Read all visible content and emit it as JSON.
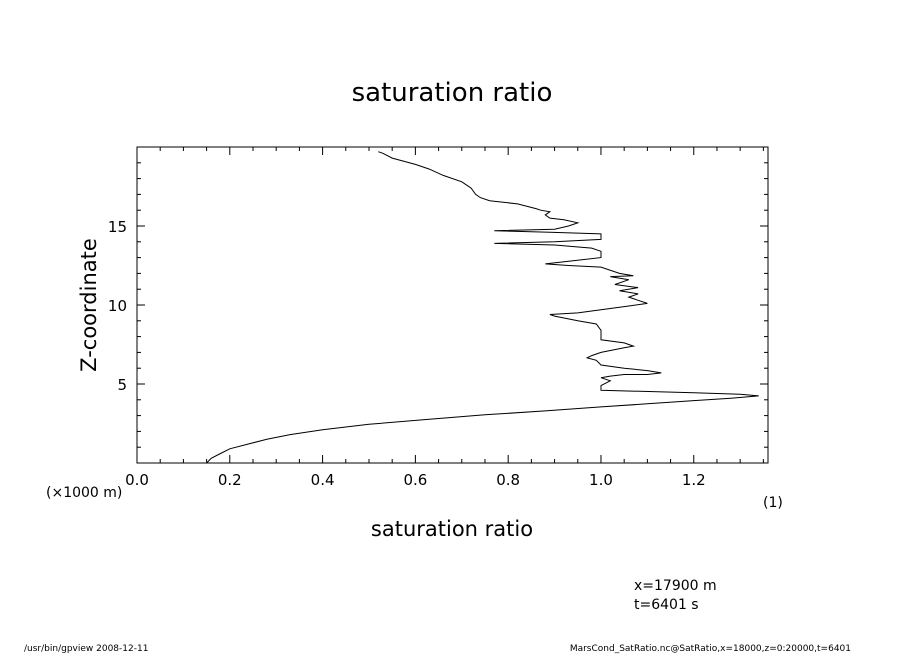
{
  "footer": {
    "left": "/usr/bin/gpview   2008-12-11",
    "right": "MarsCond_SatRatio.nc@SatRatio,x=18000,z=0:20000,t=6401"
  },
  "info": {
    "x_label": "x=17900  m",
    "t_label": "t=6401  s"
  },
  "chart_data": {
    "type": "line",
    "title": "saturation ratio",
    "xlabel": "saturation ratio",
    "ylabel": "Z-coordinate",
    "x_unit": "(1)",
    "y_unit": "(×1000 m)",
    "xlim": [
      0.0,
      1.36
    ],
    "ylim": [
      0,
      20
    ],
    "x_ticks": [
      "0.0",
      "0.2",
      "0.4",
      "0.6",
      "0.8",
      "1.0",
      "1.2"
    ],
    "y_ticks": [
      "5",
      "10",
      "15"
    ],
    "x_tick_values": [
      0.0,
      0.2,
      0.4,
      0.6,
      0.8,
      1.0,
      1.2
    ],
    "y_tick_values": [
      5,
      10,
      15
    ],
    "grid": false,
    "series": [
      {
        "points": [
          [
            0.15,
            0.0
          ],
          [
            0.16,
            0.3
          ],
          [
            0.18,
            0.6
          ],
          [
            0.2,
            0.9
          ],
          [
            0.24,
            1.2
          ],
          [
            0.28,
            1.5
          ],
          [
            0.33,
            1.8
          ],
          [
            0.4,
            2.1
          ],
          [
            0.5,
            2.45
          ],
          [
            0.62,
            2.75
          ],
          [
            0.75,
            3.05
          ],
          [
            0.88,
            3.3
          ],
          [
            1.0,
            3.55
          ],
          [
            1.1,
            3.75
          ],
          [
            1.2,
            3.95
          ],
          [
            1.28,
            4.1
          ],
          [
            1.34,
            4.25
          ],
          [
            1.3,
            4.35
          ],
          [
            1.2,
            4.45
          ],
          [
            1.0,
            4.6
          ],
          [
            1.0,
            4.9
          ],
          [
            1.02,
            5.2
          ],
          [
            1.0,
            5.4
          ],
          [
            1.02,
            5.5
          ],
          [
            1.05,
            5.6
          ],
          [
            1.1,
            5.6
          ],
          [
            1.13,
            5.7
          ],
          [
            1.1,
            5.85
          ],
          [
            1.05,
            6.0
          ],
          [
            1.0,
            6.2
          ],
          [
            0.99,
            6.5
          ],
          [
            0.97,
            6.65
          ],
          [
            0.98,
            6.8
          ],
          [
            1.0,
            7.0
          ],
          [
            1.05,
            7.3
          ],
          [
            1.07,
            7.4
          ],
          [
            1.05,
            7.6
          ],
          [
            1.0,
            7.8
          ],
          [
            1.0,
            8.4
          ],
          [
            0.99,
            8.8
          ],
          [
            0.95,
            9.0
          ],
          [
            0.9,
            9.3
          ],
          [
            0.89,
            9.4
          ],
          [
            0.95,
            9.5
          ],
          [
            1.0,
            9.7
          ],
          [
            1.05,
            9.9
          ],
          [
            1.1,
            10.1
          ],
          [
            1.08,
            10.3
          ],
          [
            1.06,
            10.5
          ],
          [
            1.08,
            10.7
          ],
          [
            1.04,
            10.9
          ],
          [
            1.08,
            11.1
          ],
          [
            1.03,
            11.3
          ],
          [
            1.06,
            11.6
          ],
          [
            1.02,
            11.8
          ],
          [
            1.07,
            11.85
          ],
          [
            1.04,
            12.0
          ],
          [
            1.0,
            12.4
          ],
          [
            0.93,
            12.5
          ],
          [
            0.88,
            12.6
          ],
          [
            0.94,
            12.8
          ],
          [
            1.0,
            13.0
          ],
          [
            1.0,
            13.4
          ],
          [
            0.98,
            13.6
          ],
          [
            0.9,
            13.8
          ],
          [
            0.77,
            13.9
          ],
          [
            0.9,
            14.0
          ],
          [
            1.0,
            14.15
          ],
          [
            1.0,
            14.5
          ],
          [
            0.89,
            14.6
          ],
          [
            0.77,
            14.7
          ],
          [
            0.9,
            14.8
          ],
          [
            0.93,
            15.0
          ],
          [
            0.95,
            15.2
          ],
          [
            0.92,
            15.4
          ],
          [
            0.89,
            15.5
          ],
          [
            0.88,
            15.7
          ],
          [
            0.89,
            15.9
          ],
          [
            0.87,
            16.0
          ],
          [
            0.86,
            16.1
          ],
          [
            0.82,
            16.4
          ],
          [
            0.76,
            16.6
          ],
          [
            0.74,
            16.8
          ],
          [
            0.73,
            17.0
          ],
          [
            0.72,
            17.4
          ],
          [
            0.71,
            17.6
          ],
          [
            0.7,
            17.8
          ],
          [
            0.66,
            18.2
          ],
          [
            0.63,
            18.6
          ],
          [
            0.6,
            18.9
          ],
          [
            0.55,
            19.3
          ],
          [
            0.53,
            19.6
          ],
          [
            0.52,
            19.7
          ]
        ]
      }
    ]
  }
}
